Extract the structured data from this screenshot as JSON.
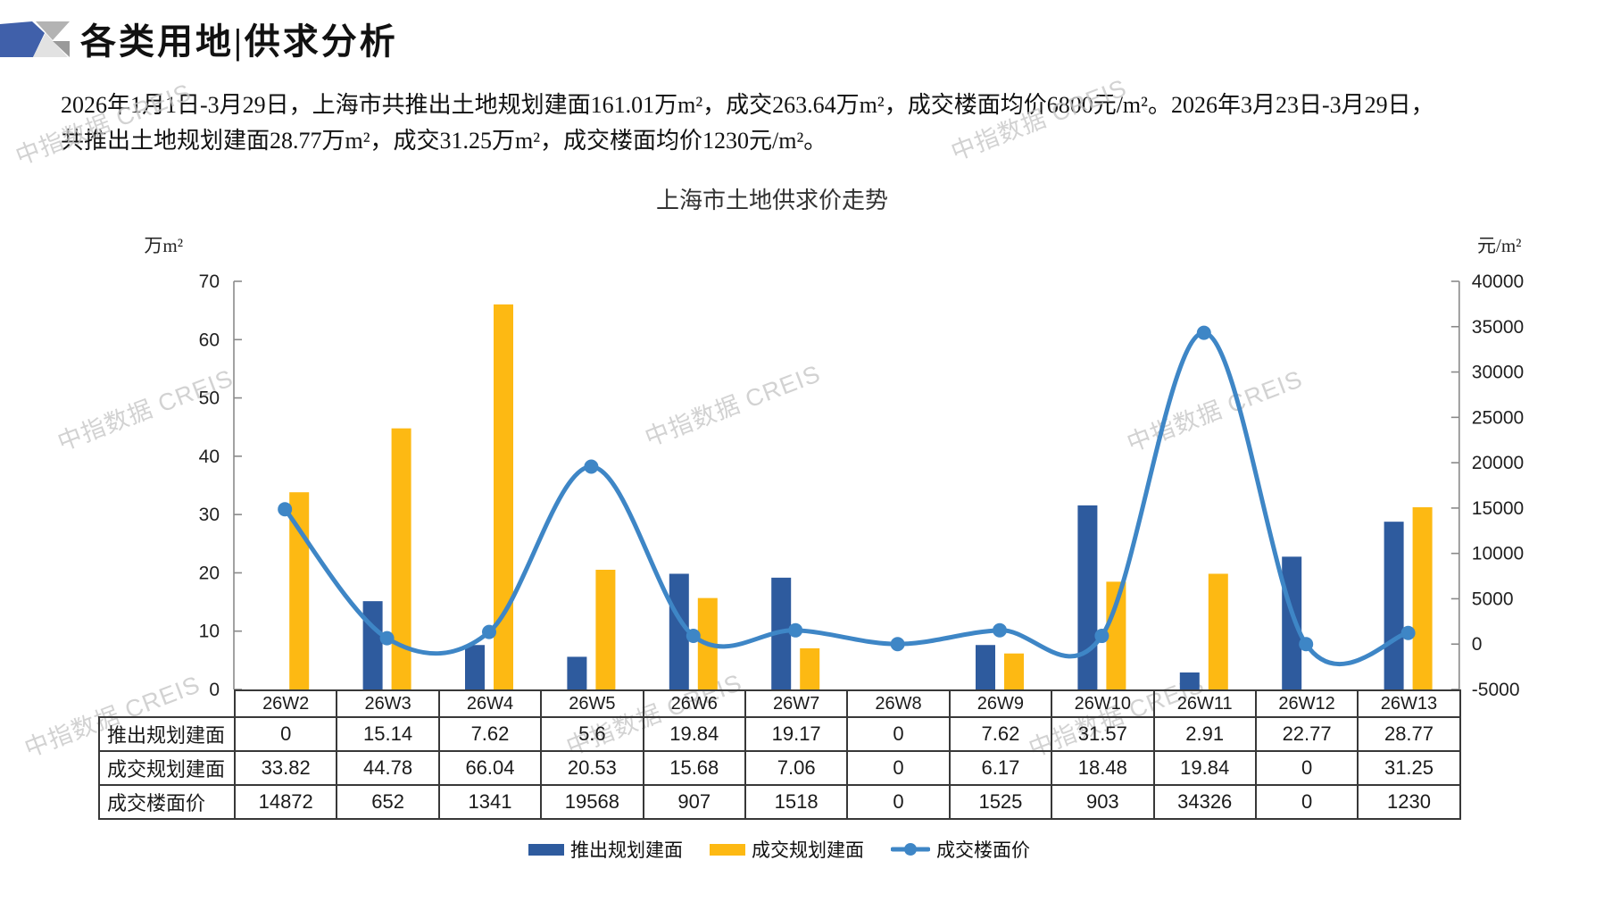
{
  "page": {
    "section_title": "各类用地|供求分析",
    "summary_lines": [
      "2026年1月1日-3月29日，上海市共推出土地规划建面161.01万m²，成交263.64万m²，成交楼面均价6800元/m²。2026年3月23日-3月29日，",
      "共推出土地规划建面28.77万m²，成交31.25万m²，成交楼面均价1230元/m²。"
    ],
    "watermark_text": "中指数据 CREIS"
  },
  "chart_data": {
    "type": "bar",
    "subtype": "grouped-bars-with-smooth-line",
    "title": "上海市土地供求价走势",
    "categories": [
      "26W2",
      "26W3",
      "26W4",
      "26W5",
      "26W6",
      "26W7",
      "26W8",
      "26W9",
      "26W10",
      "26W11",
      "26W12",
      "26W13"
    ],
    "series": [
      {
        "name": "推出规划建面",
        "type": "bar",
        "axis": "left",
        "color": "#2E5B9E",
        "values": [
          0,
          15.14,
          7.62,
          5.6,
          19.84,
          19.17,
          0,
          7.62,
          31.57,
          2.91,
          22.77,
          28.77
        ]
      },
      {
        "name": "成交规划建面",
        "type": "bar",
        "axis": "left",
        "color": "#FDB913",
        "values": [
          33.82,
          44.78,
          66.04,
          20.53,
          15.68,
          7.06,
          0,
          6.17,
          18.48,
          19.84,
          0,
          31.25
        ]
      },
      {
        "name": "成交楼面价",
        "type": "line",
        "axis": "right",
        "color": "#3E86C6",
        "smooth": true,
        "marker": "circle",
        "values": [
          14872,
          652,
          1341,
          19568,
          907,
          1518,
          0,
          1525,
          903,
          34326,
          0,
          1230
        ]
      }
    ],
    "left_axis": {
      "unit": "万m²",
      "min": 0,
      "max": 70,
      "step": 10
    },
    "right_axis": {
      "unit": "元/m²",
      "min": -5000,
      "max": 40000,
      "step": 5000
    },
    "grid": false,
    "legend_position": "bottom",
    "data_table_shown": true
  }
}
